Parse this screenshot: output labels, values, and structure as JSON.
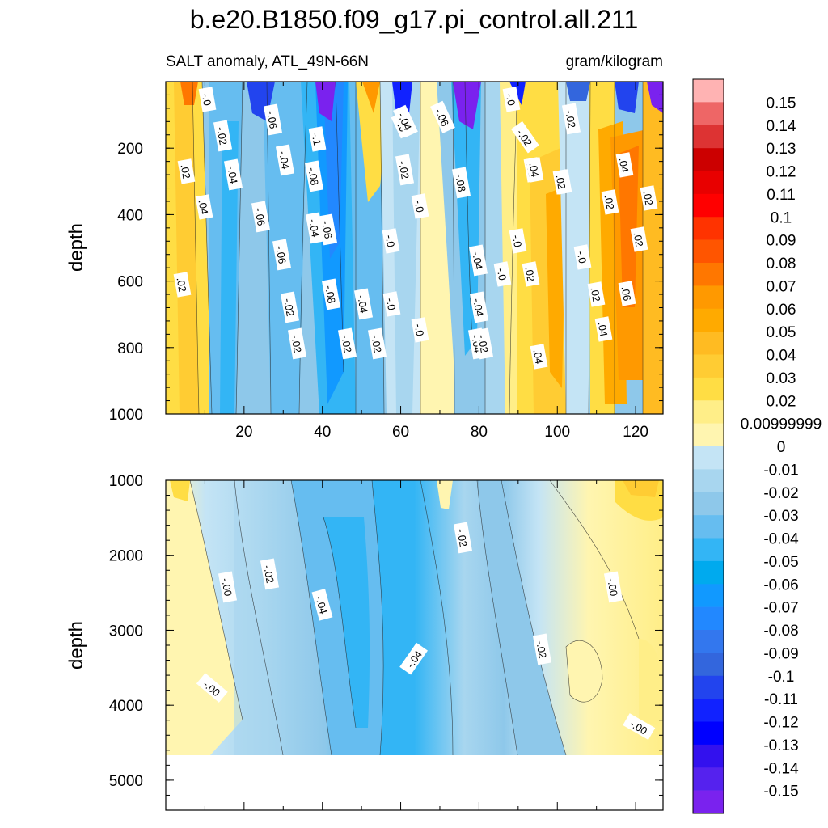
{
  "title": "b.e20.B1850.f09_g17.pi_control.all.211",
  "chart_data": {
    "type": "heatmap",
    "subtitle_left": "SALT anomaly, ATL_49N-66N",
    "subtitle_right": "gram/kilogram",
    "xlabel": "",
    "ylabel": "depth",
    "xlim": [
      0,
      127
    ],
    "xticks": [
      "20",
      "40",
      "60",
      "80",
      "100",
      "120"
    ],
    "upper_panel": {
      "ylim": [
        0,
        1000
      ],
      "yticks": [
        "200",
        "400",
        "600",
        "800",
        "1000"
      ],
      "contour_labels": [
        "-.0",
        "-.02",
        "-.06",
        "-.1",
        "-.04",
        "-.08",
        "-.06",
        "-.04",
        "-.06",
        "-.0",
        "-.02",
        "-.0",
        "-.0",
        "-.04",
        "-.02",
        "-.04",
        "-.08",
        "-.04",
        "-.02",
        ".02",
        ".04",
        ".02",
        ".04",
        ".02",
        ".02",
        ".04",
        "-.08",
        ".02",
        "-.0",
        "-.0",
        "-.02",
        "-.06",
        "-.04",
        "-.0",
        ".02",
        "-.0",
        "-.02",
        ".02",
        ".02",
        ".06",
        "-.02",
        "-.02",
        ".04",
        ".02",
        ".04",
        ".04",
        "-.0",
        "-.04",
        "-.02",
        "-.06",
        "-.0",
        "-.04"
      ]
    },
    "lower_panel": {
      "ylim": [
        1000,
        5400
      ],
      "yticks": [
        "1000",
        "2000",
        "3000",
        "4000",
        "5000"
      ],
      "contour_labels": [
        "-.00",
        "-.02",
        "-.04",
        "-.04",
        "-.02",
        "-.02",
        "-.00",
        "-.00",
        "-.00"
      ]
    },
    "colorbar": {
      "labels": [
        "0.15",
        "0.14",
        "0.13",
        "0.12",
        "0.11",
        "0.1",
        "0.09",
        "0.08",
        "0.07",
        "0.06",
        "0.05",
        "0.04",
        "0.03",
        "0.02",
        "0.00999999",
        "0",
        "-0.01",
        "-0.02",
        "-0.03",
        "-0.04",
        "-0.05",
        "-0.06",
        "-0.07",
        "-0.08",
        "-0.09",
        "-0.1",
        "-0.11",
        "-0.12",
        "-0.13",
        "-0.14",
        "-0.15"
      ],
      "colors": [
        "#ffb3b3",
        "#ee6666",
        "#dd3333",
        "#cc0000",
        "#e80000",
        "#ff0000",
        "#ff3300",
        "#ff5500",
        "#ff7700",
        "#ff9900",
        "#ffaa00",
        "#ffbb22",
        "#ffcc33",
        "#ffdd44",
        "#ffee88",
        "#fff5b0",
        "#c4e4f5",
        "#a8d6ef",
        "#8ec8ea",
        "#66bdf0",
        "#33b5f5",
        "#00aaee",
        "#1199ff",
        "#2288ff",
        "#3377ee",
        "#3366dd",
        "#2244ee",
        "#1122ff",
        "#0000ff",
        "#3311ee",
        "#5522ee",
        "#7a22ee"
      ]
    }
  }
}
